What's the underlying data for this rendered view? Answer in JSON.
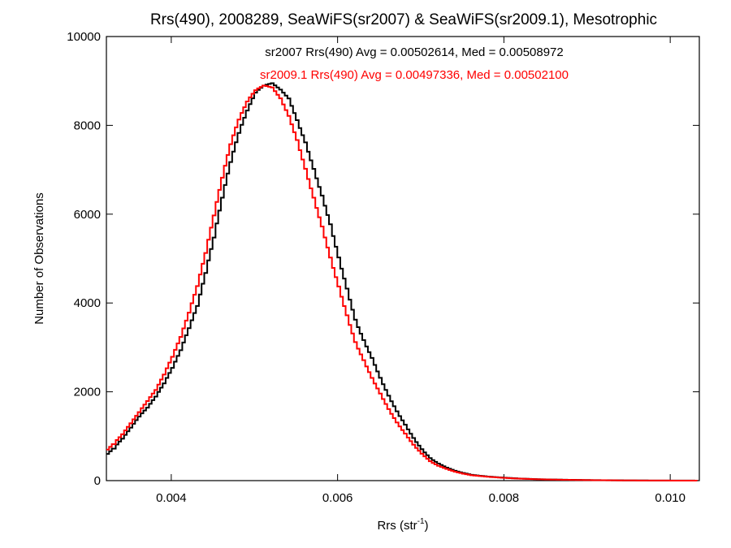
{
  "chart_data": {
    "type": "line",
    "title": "Rrs(490), 2008289, SeaWiFS(sr2007) & SeaWiFS(sr2009.1), Mesotrophic",
    "xlabel_main": "Rrs (str",
    "xlabel_sup": "-1",
    "xlabel_close": ")",
    "ylabel": "Number of Observations",
    "xlim": [
      0.00322,
      0.01035
    ],
    "ylim": [
      0,
      10000
    ],
    "x_ticks": [
      {
        "value": 0.004,
        "label": "0.004"
      },
      {
        "value": 0.006,
        "label": "0.006"
      },
      {
        "value": 0.008,
        "label": "0.008"
      },
      {
        "value": 0.01,
        "label": "0.010"
      }
    ],
    "y_ticks": [
      {
        "value": 0,
        "label": "0"
      },
      {
        "value": 2000,
        "label": "2000"
      },
      {
        "value": 4000,
        "label": "4000"
      },
      {
        "value": 6000,
        "label": "6000"
      },
      {
        "value": 8000,
        "label": "8000"
      },
      {
        "value": 10000,
        "label": "10000"
      }
    ],
    "grid": false,
    "legend": "top-center",
    "annotations": [
      {
        "text": "sr2007 Rrs(490) Avg = 0.00502614, Med = 0.00508972",
        "color": "#000000"
      },
      {
        "text": "sr2009.1 Rrs(490) Avg = 0.00497336, Med = 0.00502100",
        "color": "#ff0000"
      }
    ],
    "series": [
      {
        "color": "#000000",
        "style": "histogram-step",
        "x": [
          0.00322,
          0.0033,
          0.0034,
          0.0035,
          0.0036,
          0.0037,
          0.0038,
          0.0039,
          0.004,
          0.0041,
          0.0042,
          0.0043,
          0.0044,
          0.0045,
          0.0046,
          0.0047,
          0.0048,
          0.0049,
          0.005,
          0.0051,
          0.0052,
          0.0053,
          0.0054,
          0.0055,
          0.0056,
          0.0057,
          0.0058,
          0.0059,
          0.006,
          0.0061,
          0.0062,
          0.0063,
          0.0064,
          0.0065,
          0.0066,
          0.0067,
          0.0068,
          0.0069,
          0.007,
          0.0071,
          0.0072,
          0.0073,
          0.0074,
          0.0075,
          0.0076,
          0.0078,
          0.008,
          0.0082,
          0.0084,
          0.0086,
          0.0088,
          0.009,
          0.0092,
          0.0094,
          0.0096,
          0.0098,
          0.01,
          0.01035
        ],
        "values": [
          600,
          750,
          950,
          1200,
          1450,
          1650,
          1900,
          2200,
          2550,
          2950,
          3450,
          3950,
          4700,
          5500,
          6400,
          7200,
          7850,
          8350,
          8750,
          8900,
          8950,
          8800,
          8600,
          8100,
          7600,
          7000,
          6400,
          5750,
          5000,
          4300,
          3600,
          3150,
          2750,
          2300,
          1900,
          1550,
          1250,
          950,
          700,
          500,
          380,
          290,
          220,
          170,
          130,
          90,
          65,
          45,
          32,
          24,
          18,
          13,
          9,
          6,
          4,
          3,
          2,
          1
        ]
      },
      {
        "color": "#ff0000",
        "style": "histogram-step",
        "x": [
          0.00322,
          0.0033,
          0.0034,
          0.0035,
          0.0036,
          0.0037,
          0.0038,
          0.0039,
          0.004,
          0.0041,
          0.0042,
          0.0043,
          0.0044,
          0.0045,
          0.0046,
          0.0047,
          0.0048,
          0.0049,
          0.005,
          0.0051,
          0.0052,
          0.0053,
          0.0054,
          0.0055,
          0.0056,
          0.0057,
          0.0058,
          0.0059,
          0.006,
          0.0061,
          0.0062,
          0.0063,
          0.0064,
          0.0065,
          0.0066,
          0.0067,
          0.0068,
          0.0069,
          0.007,
          0.0071,
          0.0072,
          0.0073,
          0.0074,
          0.0075,
          0.0076,
          0.0078,
          0.008,
          0.0082,
          0.0084,
          0.0086,
          0.0088,
          0.009,
          0.0092,
          0.0094,
          0.0096,
          0.0098,
          0.01,
          0.01035
        ],
        "values": [
          700,
          850,
          1050,
          1300,
          1550,
          1800,
          2050,
          2400,
          2800,
          3250,
          3800,
          4400,
          5150,
          6000,
          6850,
          7600,
          8150,
          8550,
          8800,
          8900,
          8850,
          8600,
          8200,
          7650,
          7000,
          6350,
          5700,
          5000,
          4350,
          3700,
          3100,
          2700,
          2300,
          1950,
          1600,
          1300,
          1050,
          800,
          600,
          430,
          330,
          260,
          200,
          155,
          120,
          85,
          60,
          42,
          30,
          22,
          16,
          11,
          8,
          5,
          3,
          2,
          1,
          0
        ]
      }
    ]
  }
}
